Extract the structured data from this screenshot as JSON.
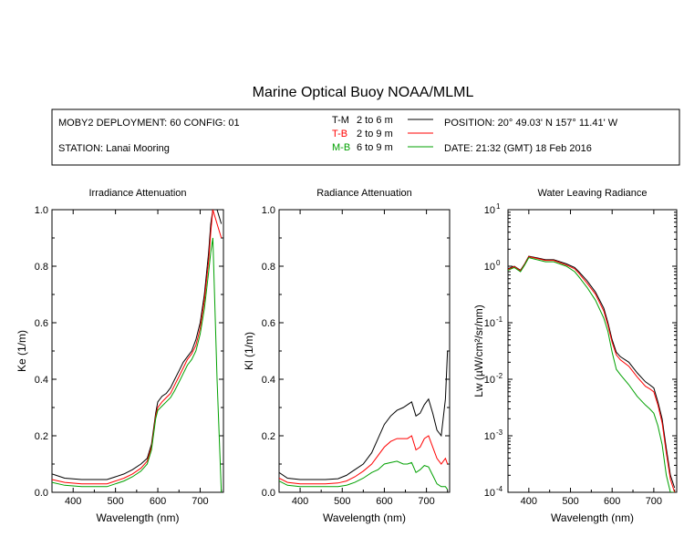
{
  "title": "Marine Optical Buoy NOAA/MLML",
  "info": {
    "deployment": "MOBY2 DEPLOYMENT: 60 CONFIG: 01",
    "station": "STATION: Lanai Mooring",
    "position": "POSITION: 20° 49.03' N   157° 11.41' W",
    "date": "DATE: 21:32 (GMT) 18 Feb 2016"
  },
  "legend": [
    {
      "code": "T-M",
      "range": "2 to 6  m",
      "color": "#000000"
    },
    {
      "code": "T-B",
      "range": "2 to 9  m",
      "color": "#ff0000"
    },
    {
      "code": "M-B",
      "range": "6 to 9  m",
      "color": "#00a000"
    }
  ],
  "chart_data": [
    {
      "type": "line",
      "title": "Irradiance Attenuation",
      "xlabel": "Wavelength (nm)",
      "ylabel": "Ke  (1/m)",
      "xlim": [
        350,
        755
      ],
      "ylim": [
        0,
        1.0
      ],
      "xticks": [
        400,
        500,
        600,
        700
      ],
      "yticks": [
        0.0,
        0.2,
        0.4,
        0.6,
        0.8,
        1.0
      ],
      "ytick_labels": [
        "0.0",
        "0.2",
        "0.4",
        "0.6",
        "0.8",
        "1.0"
      ],
      "series": [
        {
          "color": "#000000",
          "x": [
            350,
            380,
            420,
            450,
            480,
            500,
            520,
            540,
            560,
            575,
            585,
            595,
            600,
            610,
            620,
            630,
            640,
            650,
            660,
            670,
            680,
            690,
            700,
            710,
            720,
            725,
            730,
            740,
            750
          ],
          "y": [
            0.065,
            0.05,
            0.045,
            0.045,
            0.045,
            0.055,
            0.065,
            0.08,
            0.1,
            0.12,
            0.17,
            0.28,
            0.32,
            0.34,
            0.35,
            0.37,
            0.4,
            0.43,
            0.46,
            0.48,
            0.5,
            0.54,
            0.6,
            0.7,
            0.85,
            0.95,
            1.0,
            1.0,
            0.95
          ]
        },
        {
          "color": "#ff0000",
          "x": [
            350,
            380,
            420,
            450,
            480,
            500,
            520,
            540,
            560,
            575,
            585,
            595,
            600,
            610,
            620,
            630,
            640,
            650,
            660,
            670,
            680,
            690,
            700,
            710,
            720,
            725,
            730,
            740,
            750
          ],
          "y": [
            0.045,
            0.035,
            0.03,
            0.03,
            0.03,
            0.04,
            0.05,
            0.065,
            0.085,
            0.11,
            0.16,
            0.27,
            0.3,
            0.32,
            0.335,
            0.35,
            0.38,
            0.41,
            0.44,
            0.47,
            0.49,
            0.52,
            0.58,
            0.68,
            0.82,
            0.92,
            1.0,
            0.95,
            0.9
          ]
        },
        {
          "color": "#00a000",
          "x": [
            350,
            380,
            420,
            450,
            480,
            500,
            520,
            540,
            560,
            575,
            585,
            595,
            600,
            610,
            620,
            630,
            640,
            650,
            660,
            670,
            680,
            690,
            700,
            710,
            720,
            725,
            730,
            740,
            750
          ],
          "y": [
            0.035,
            0.025,
            0.02,
            0.02,
            0.02,
            0.03,
            0.04,
            0.055,
            0.075,
            0.1,
            0.15,
            0.26,
            0.29,
            0.305,
            0.32,
            0.335,
            0.36,
            0.39,
            0.42,
            0.45,
            0.47,
            0.5,
            0.56,
            0.65,
            0.78,
            0.85,
            0.9,
            0.4,
            0.0
          ]
        }
      ]
    },
    {
      "type": "line",
      "title": "Radiance Attenuation",
      "xlabel": "Wavelength (nm)",
      "ylabel": "Kl  (1/m)",
      "xlim": [
        350,
        755
      ],
      "ylim": [
        0,
        1.0
      ],
      "xticks": [
        400,
        500,
        600,
        700
      ],
      "yticks": [
        0.0,
        0.2,
        0.4,
        0.6,
        0.8,
        1.0
      ],
      "ytick_labels": [
        "0.0",
        "0.2",
        "0.4",
        "0.6",
        "0.8",
        "1.0"
      ],
      "series": [
        {
          "color": "#000000",
          "x": [
            350,
            370,
            400,
            430,
            460,
            490,
            510,
            530,
            550,
            570,
            585,
            600,
            615,
            630,
            645,
            655,
            665,
            675,
            685,
            695,
            705,
            715,
            725,
            735,
            745,
            750
          ],
          "y": [
            0.07,
            0.05,
            0.045,
            0.045,
            0.045,
            0.048,
            0.06,
            0.08,
            0.1,
            0.14,
            0.19,
            0.24,
            0.27,
            0.29,
            0.3,
            0.31,
            0.32,
            0.27,
            0.28,
            0.31,
            0.33,
            0.28,
            0.22,
            0.2,
            0.33,
            0.5
          ]
        },
        {
          "color": "#ff0000",
          "x": [
            350,
            370,
            400,
            430,
            460,
            490,
            510,
            530,
            550,
            570,
            585,
            600,
            615,
            630,
            645,
            655,
            665,
            675,
            685,
            695,
            705,
            715,
            725,
            735,
            745,
            750
          ],
          "y": [
            0.05,
            0.035,
            0.03,
            0.03,
            0.03,
            0.033,
            0.04,
            0.055,
            0.075,
            0.1,
            0.13,
            0.16,
            0.18,
            0.19,
            0.19,
            0.19,
            0.2,
            0.15,
            0.16,
            0.19,
            0.2,
            0.16,
            0.12,
            0.1,
            0.12,
            0.1
          ]
        },
        {
          "color": "#00a000",
          "x": [
            350,
            370,
            400,
            430,
            460,
            490,
            510,
            530,
            550,
            570,
            585,
            600,
            615,
            630,
            645,
            655,
            665,
            675,
            685,
            695,
            705,
            715,
            725,
            735,
            745,
            750
          ],
          "y": [
            0.04,
            0.025,
            0.02,
            0.02,
            0.02,
            0.02,
            0.025,
            0.035,
            0.05,
            0.07,
            0.08,
            0.1,
            0.105,
            0.11,
            0.1,
            0.1,
            0.105,
            0.07,
            0.08,
            0.095,
            0.09,
            0.06,
            0.03,
            0.02,
            0.02,
            0.01
          ]
        }
      ]
    },
    {
      "type": "line",
      "title": "Water Leaving Radiance",
      "xlabel": "Wavelength (nm)",
      "ylabel": "Lw  (µW/cm²/sr/nm)",
      "yscale": "log",
      "xlim": [
        350,
        755
      ],
      "ylim": [
        0.0001,
        10
      ],
      "xticks": [
        400,
        500,
        600,
        700
      ],
      "yticks": [
        0.0001,
        0.001,
        0.01,
        0.1,
        1,
        10
      ],
      "ytick_labels": [
        [
          "10",
          "-4"
        ],
        [
          "10",
          "-3"
        ],
        [
          "10",
          "-2"
        ],
        [
          "10",
          "-1"
        ],
        [
          "10",
          "0"
        ],
        [
          "10",
          "1"
        ]
      ],
      "series": [
        {
          "color": "#000000",
          "x": [
            350,
            365,
            380,
            390,
            400,
            420,
            440,
            460,
            490,
            510,
            520,
            540,
            560,
            580,
            590,
            600,
            610,
            620,
            640,
            660,
            680,
            690,
            700,
            710,
            720,
            730,
            740,
            750
          ],
          "y": [
            0.9,
            1.0,
            0.85,
            1.1,
            1.5,
            1.4,
            1.3,
            1.3,
            1.1,
            0.95,
            0.8,
            0.55,
            0.35,
            0.18,
            0.1,
            0.05,
            0.03,
            0.025,
            0.02,
            0.013,
            0.009,
            0.008,
            0.007,
            0.004,
            0.002,
            0.0006,
            0.0002,
            0.00012
          ]
        },
        {
          "color": "#ff0000",
          "x": [
            350,
            365,
            380,
            390,
            400,
            420,
            440,
            460,
            490,
            510,
            520,
            540,
            560,
            580,
            590,
            600,
            610,
            620,
            640,
            660,
            680,
            690,
            700,
            710,
            720,
            730,
            740,
            750
          ],
          "y": [
            0.88,
            0.98,
            0.83,
            1.08,
            1.47,
            1.37,
            1.27,
            1.27,
            1.05,
            0.9,
            0.75,
            0.5,
            0.32,
            0.16,
            0.09,
            0.045,
            0.027,
            0.022,
            0.017,
            0.011,
            0.0075,
            0.0068,
            0.006,
            0.0035,
            0.0017,
            0.0005,
            0.00017,
            0.0001
          ]
        },
        {
          "color": "#00a000",
          "x": [
            350,
            365,
            380,
            390,
            400,
            420,
            440,
            460,
            490,
            510,
            520,
            540,
            560,
            580,
            590,
            600,
            610,
            620,
            640,
            660,
            680,
            690,
            700,
            710,
            720,
            730,
            740,
            750
          ],
          "y": [
            0.85,
            0.95,
            0.8,
            1.05,
            1.42,
            1.3,
            1.2,
            1.2,
            1.0,
            0.8,
            0.65,
            0.42,
            0.25,
            0.12,
            0.07,
            0.03,
            0.015,
            0.012,
            0.008,
            0.005,
            0.0035,
            0.003,
            0.0025,
            0.0015,
            0.0007,
            0.0002,
            0.0001,
            0.0001
          ]
        }
      ]
    }
  ]
}
